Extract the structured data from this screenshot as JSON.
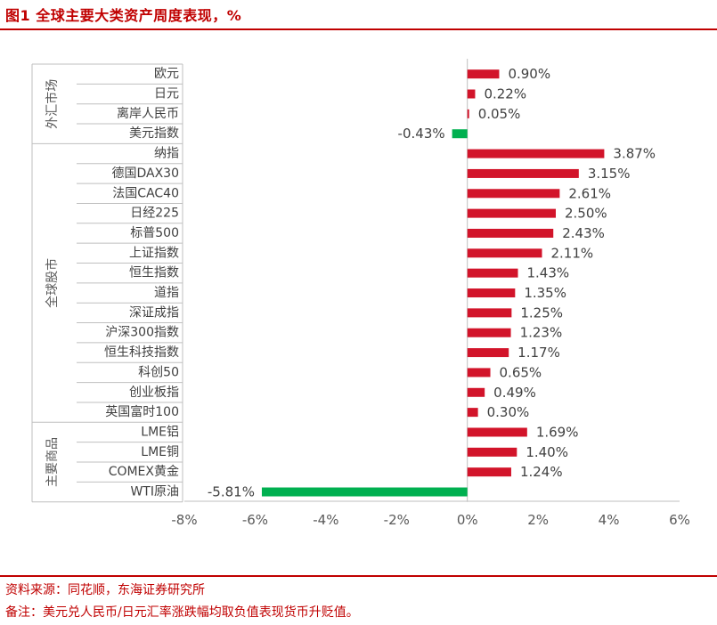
{
  "figure_title": "图1  全球主要大类资产周度表现，%",
  "source": "资料来源：同花顺，东海证券研究所",
  "note": "备注：美元兑人民币/日元汇率涨跌幅均取负值表现货币升贬值。",
  "colors": {
    "accent": "#c00000",
    "positive_bar": "#d2142a",
    "negative_bar": "#00b050"
  },
  "chart_data": {
    "type": "bar",
    "orientation": "horizontal",
    "xlim": [
      -8,
      6
    ],
    "x_ticks": [
      "-8%",
      "-6%",
      "-4%",
      "-2%",
      "0%",
      "2%",
      "4%",
      "6%"
    ],
    "value_unit": "%",
    "groups": [
      {
        "label": "外汇市场",
        "categories": [
          "欧元",
          "日元",
          "离岸人民币",
          "美元指数"
        ]
      },
      {
        "label": "全球股市",
        "categories": [
          "纳指",
          "德国DAX30",
          "法国CAC40",
          "日经225",
          "标普500",
          "上证指数",
          "恒生指数",
          "道指",
          "深证成指",
          "沪深300指数",
          "恒生科技指数",
          "科创50",
          "创业板指",
          "英国富时100"
        ]
      },
      {
        "label": "主要商品",
        "categories": [
          "LME铝",
          "LME铜",
          "COMEX黄金",
          "WTI原油"
        ]
      }
    ],
    "categories": [
      "欧元",
      "日元",
      "离岸人民币",
      "美元指数",
      "纳指",
      "德国DAX30",
      "法国CAC40",
      "日经225",
      "标普500",
      "上证指数",
      "恒生指数",
      "道指",
      "深证成指",
      "沪深300指数",
      "恒生科技指数",
      "科创50",
      "创业板指",
      "英国富时100",
      "LME铝",
      "LME铜",
      "COMEX黄金",
      "WTI原油"
    ],
    "values": [
      0.9,
      0.22,
      0.05,
      -0.43,
      3.87,
      3.15,
      2.61,
      2.5,
      2.43,
      2.11,
      1.43,
      1.35,
      1.25,
      1.23,
      1.17,
      0.65,
      0.49,
      0.3,
      1.69,
      1.4,
      1.24,
      -5.81
    ],
    "value_labels": [
      "0.90%",
      "0.22%",
      "0.05%",
      "-0.43%",
      "3.87%",
      "3.15%",
      "2.61%",
      "2.50%",
      "2.43%",
      "2.11%",
      "1.43%",
      "1.35%",
      "1.25%",
      "1.23%",
      "1.17%",
      "0.65%",
      "0.49%",
      "0.30%",
      "1.69%",
      "1.40%",
      "1.24%",
      "-5.81%"
    ]
  }
}
